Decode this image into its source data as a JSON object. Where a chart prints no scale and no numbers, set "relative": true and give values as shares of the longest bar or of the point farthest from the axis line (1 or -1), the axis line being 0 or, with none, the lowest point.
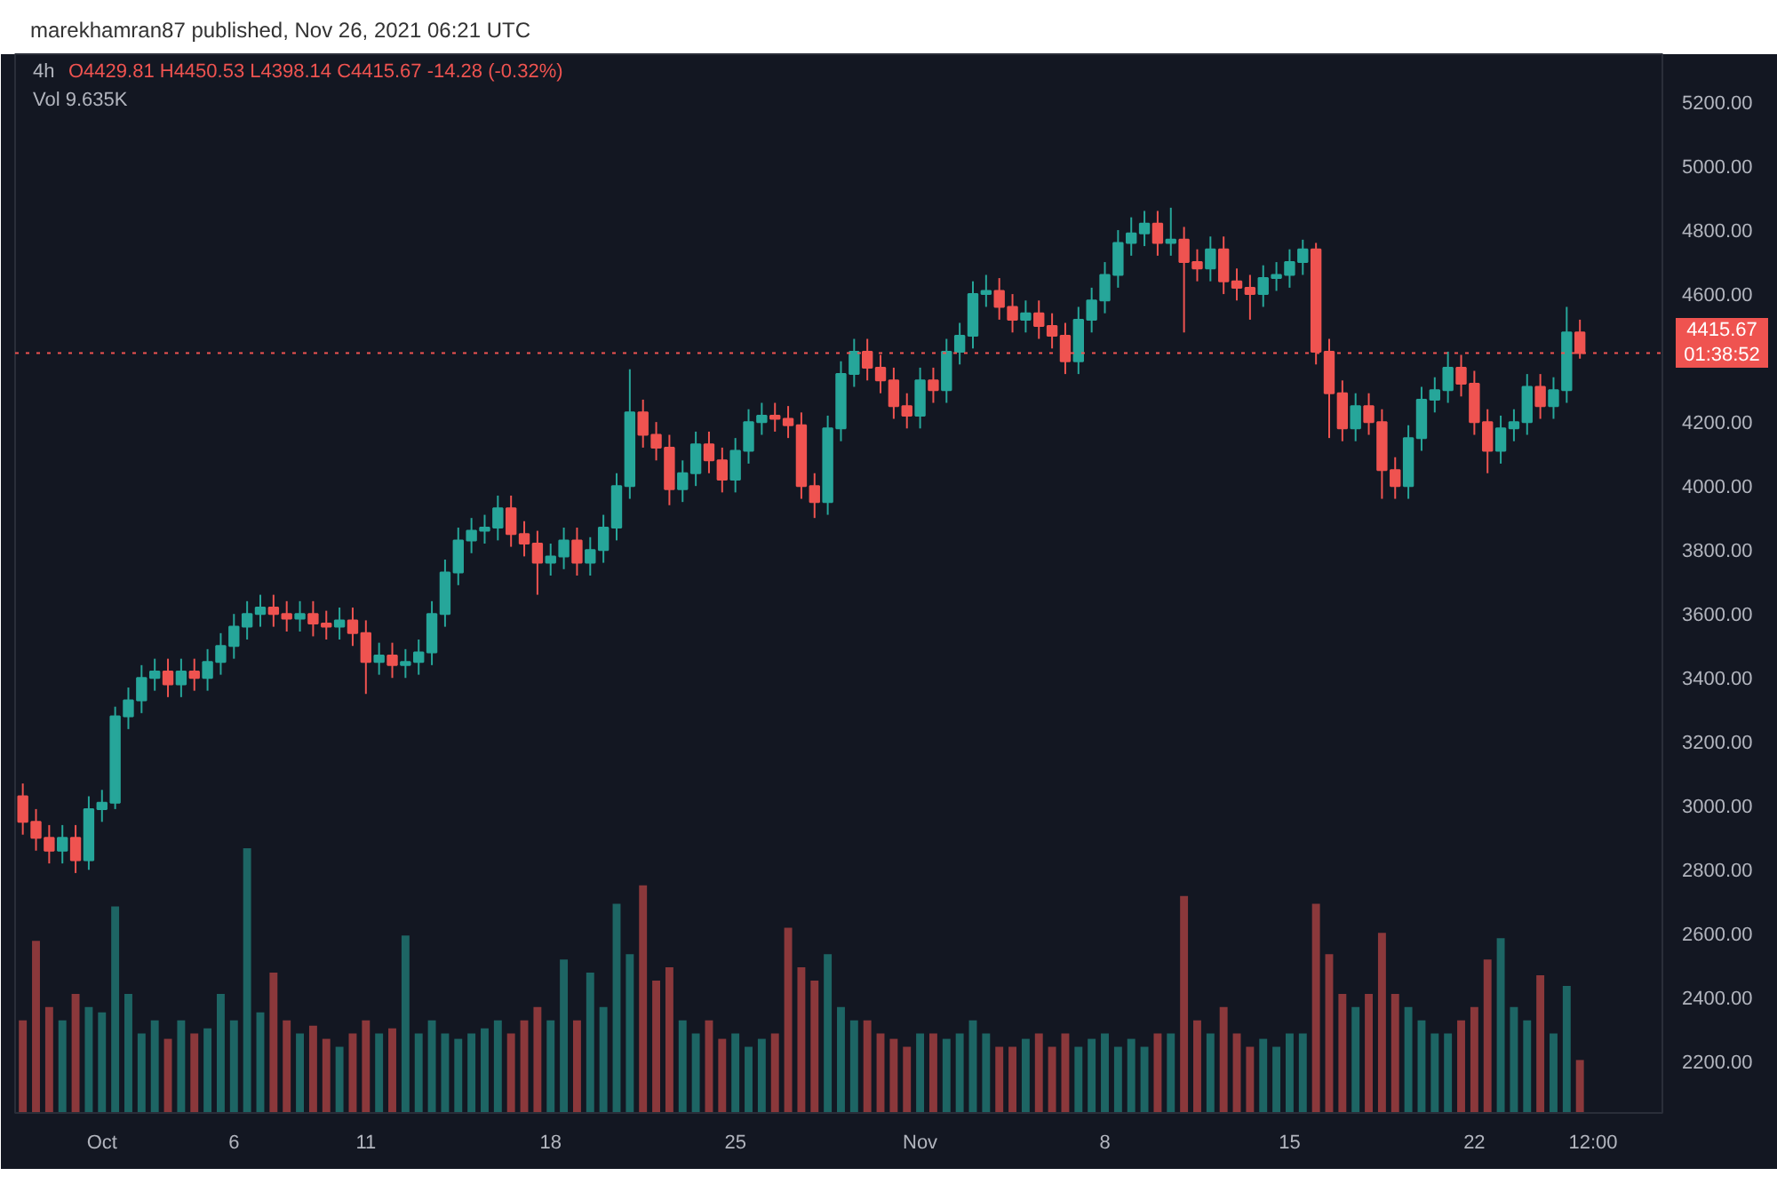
{
  "chart_data": [
    {
      "type": "candlestick",
      "title": "4h",
      "annotations": [
        "marekhamran87 published, Nov 26, 2021 06:21 UTC",
        "O4429.81 H4450.53 L4398.14 C4415.67 -14.28 (-0.32%)",
        "01:38:52"
      ],
      "x": [
        "2021-09-28T00:00",
        "2021-09-28T12:00",
        "2021-09-29T00:00",
        "2021-09-29T12:00",
        "2021-09-30T00:00",
        "2021-09-30T12:00",
        "2021-10-01T00:00",
        "2021-10-01T12:00",
        "2021-10-02T00:00",
        "2021-10-02T12:00",
        "2021-10-03T00:00",
        "2021-10-03T12:00",
        "2021-10-04T00:00",
        "2021-10-04T12:00",
        "2021-10-05T00:00",
        "2021-10-05T12:00",
        "2021-10-06T00:00",
        "2021-10-06T12:00",
        "2021-10-07T00:00",
        "2021-10-07T12:00",
        "2021-10-08T00:00",
        "2021-10-08T12:00",
        "2021-10-09T00:00",
        "2021-10-09T12:00",
        "2021-10-10T00:00",
        "2021-10-10T12:00",
        "2021-10-11T00:00",
        "2021-10-11T12:00",
        "2021-10-12T00:00",
        "2021-10-12T12:00",
        "2021-10-13T00:00",
        "2021-10-13T12:00",
        "2021-10-14T00:00",
        "2021-10-14T12:00",
        "2021-10-15T00:00",
        "2021-10-15T12:00",
        "2021-10-16T00:00",
        "2021-10-16T12:00",
        "2021-10-17T00:00",
        "2021-10-17T12:00",
        "2021-10-18T00:00",
        "2021-10-18T12:00",
        "2021-10-19T00:00",
        "2021-10-19T12:00",
        "2021-10-20T00:00",
        "2021-10-20T12:00",
        "2021-10-21T00:00",
        "2021-10-21T12:00",
        "2021-10-22T00:00",
        "2021-10-22T12:00",
        "2021-10-23T00:00",
        "2021-10-23T12:00",
        "2021-10-24T00:00",
        "2021-10-24T12:00",
        "2021-10-25T00:00",
        "2021-10-25T12:00",
        "2021-10-26T00:00",
        "2021-10-26T12:00",
        "2021-10-27T00:00",
        "2021-10-27T12:00",
        "2021-10-28T00:00",
        "2021-10-28T12:00",
        "2021-10-29T00:00",
        "2021-10-29T12:00",
        "2021-10-30T00:00",
        "2021-10-30T12:00",
        "2021-10-31T00:00",
        "2021-10-31T12:00",
        "2021-11-01T00:00",
        "2021-11-01T12:00",
        "2021-11-02T00:00",
        "2021-11-02T12:00",
        "2021-11-03T00:00",
        "2021-11-03T12:00",
        "2021-11-04T00:00",
        "2021-11-04T12:00",
        "2021-11-05T00:00",
        "2021-11-05T12:00",
        "2021-11-06T00:00",
        "2021-11-06T12:00",
        "2021-11-07T00:00",
        "2021-11-07T12:00",
        "2021-11-08T00:00",
        "2021-11-08T12:00",
        "2021-11-09T00:00",
        "2021-11-09T12:00",
        "2021-11-10T00:00",
        "2021-11-10T12:00",
        "2021-11-11T00:00",
        "2021-11-11T12:00",
        "2021-11-12T00:00",
        "2021-11-12T12:00",
        "2021-11-13T00:00",
        "2021-11-13T12:00",
        "2021-11-14T00:00",
        "2021-11-14T12:00",
        "2021-11-15T00:00",
        "2021-11-15T12:00",
        "2021-11-16T00:00",
        "2021-11-16T12:00",
        "2021-11-17T00:00",
        "2021-11-17T12:00",
        "2021-11-18T00:00",
        "2021-11-18T12:00",
        "2021-11-19T00:00",
        "2021-11-19T12:00",
        "2021-11-20T00:00",
        "2021-11-20T12:00",
        "2021-11-21T00:00",
        "2021-11-21T12:00",
        "2021-11-22T00:00",
        "2021-11-22T12:00",
        "2021-11-23T00:00",
        "2021-11-23T12:00",
        "2021-11-24T00:00",
        "2021-11-24T12:00",
        "2021-11-25T00:00",
        "2021-11-25T12:00",
        "2021-11-26T00:00"
      ],
      "ohlc": [
        [
          3030,
          3070,
          2910,
          2950
        ],
        [
          2950,
          2990,
          2860,
          2900
        ],
        [
          2900,
          2940,
          2820,
          2860
        ],
        [
          2860,
          2940,
          2820,
          2900
        ],
        [
          2900,
          2940,
          2790,
          2830
        ],
        [
          2830,
          3030,
          2800,
          2990
        ],
        [
          2990,
          3050,
          2950,
          3010
        ],
        [
          3010,
          3310,
          2990,
          3280
        ],
        [
          3280,
          3370,
          3240,
          3330
        ],
        [
          3330,
          3440,
          3290,
          3400
        ],
        [
          3400,
          3460,
          3360,
          3420
        ],
        [
          3420,
          3460,
          3340,
          3380
        ],
        [
          3380,
          3460,
          3340,
          3420
        ],
        [
          3420,
          3460,
          3360,
          3400
        ],
        [
          3400,
          3490,
          3360,
          3450
        ],
        [
          3450,
          3540,
          3410,
          3500
        ],
        [
          3500,
          3600,
          3460,
          3560
        ],
        [
          3560,
          3640,
          3520,
          3600
        ],
        [
          3600,
          3660,
          3560,
          3620
        ],
        [
          3620,
          3660,
          3560,
          3600
        ],
        [
          3600,
          3640,
          3545,
          3585
        ],
        [
          3585,
          3640,
          3545,
          3600
        ],
        [
          3600,
          3640,
          3530,
          3570
        ],
        [
          3570,
          3610,
          3520,
          3560
        ],
        [
          3560,
          3620,
          3520,
          3580
        ],
        [
          3580,
          3620,
          3500,
          3540
        ],
        [
          3540,
          3580,
          3350,
          3450
        ],
        [
          3450,
          3510,
          3410,
          3470
        ],
        [
          3470,
          3510,
          3400,
          3440
        ],
        [
          3440,
          3490,
          3400,
          3450
        ],
        [
          3450,
          3520,
          3410,
          3480
        ],
        [
          3480,
          3640,
          3440,
          3600
        ],
        [
          3600,
          3770,
          3560,
          3730
        ],
        [
          3730,
          3870,
          3690,
          3830
        ],
        [
          3830,
          3900,
          3790,
          3860
        ],
        [
          3860,
          3910,
          3820,
          3870
        ],
        [
          3870,
          3970,
          3830,
          3930
        ],
        [
          3930,
          3970,
          3810,
          3850
        ],
        [
          3850,
          3890,
          3780,
          3820
        ],
        [
          3820,
          3860,
          3660,
          3760
        ],
        [
          3760,
          3820,
          3720,
          3780
        ],
        [
          3780,
          3870,
          3740,
          3830
        ],
        [
          3830,
          3870,
          3720,
          3760
        ],
        [
          3760,
          3840,
          3720,
          3800
        ],
        [
          3800,
          3910,
          3760,
          3870
        ],
        [
          3870,
          4040,
          3830,
          4000
        ],
        [
          4000,
          4365,
          3960,
          4230
        ],
        [
          4230,
          4270,
          4120,
          4160
        ],
        [
          4160,
          4200,
          4080,
          4120
        ],
        [
          4120,
          4160,
          3940,
          3990
        ],
        [
          3990,
          4080,
          3950,
          4040
        ],
        [
          4040,
          4170,
          4000,
          4130
        ],
        [
          4130,
          4170,
          4040,
          4080
        ],
        [
          4080,
          4120,
          3980,
          4020
        ],
        [
          4020,
          4150,
          3980,
          4110
        ],
        [
          4110,
          4240,
          4070,
          4200
        ],
        [
          4200,
          4260,
          4160,
          4220
        ],
        [
          4220,
          4260,
          4170,
          4210
        ],
        [
          4210,
          4250,
          4150,
          4190
        ],
        [
          4190,
          4230,
          3960,
          4000
        ],
        [
          4000,
          4040,
          3900,
          3950
        ],
        [
          3950,
          4220,
          3910,
          4180
        ],
        [
          4180,
          4390,
          4140,
          4350
        ],
        [
          4350,
          4460,
          4310,
          4420
        ],
        [
          4420,
          4460,
          4330,
          4370
        ],
        [
          4370,
          4410,
          4290,
          4330
        ],
        [
          4330,
          4370,
          4210,
          4250
        ],
        [
          4250,
          4290,
          4180,
          4220
        ],
        [
          4220,
          4370,
          4180,
          4330
        ],
        [
          4330,
          4370,
          4260,
          4300
        ],
        [
          4300,
          4460,
          4260,
          4420
        ],
        [
          4420,
          4510,
          4380,
          4470
        ],
        [
          4470,
          4640,
          4430,
          4600
        ],
        [
          4600,
          4660,
          4560,
          4610
        ],
        [
          4610,
          4650,
          4520,
          4560
        ],
        [
          4560,
          4600,
          4480,
          4520
        ],
        [
          4520,
          4580,
          4480,
          4540
        ],
        [
          4540,
          4580,
          4460,
          4500
        ],
        [
          4500,
          4540,
          4430,
          4470
        ],
        [
          4470,
          4510,
          4350,
          4390
        ],
        [
          4390,
          4560,
          4350,
          4520
        ],
        [
          4520,
          4620,
          4480,
          4580
        ],
        [
          4580,
          4700,
          4540,
          4660
        ],
        [
          4660,
          4800,
          4620,
          4760
        ],
        [
          4760,
          4840,
          4720,
          4790
        ],
        [
          4790,
          4860,
          4750,
          4820
        ],
        [
          4820,
          4860,
          4720,
          4760
        ],
        [
          4760,
          4870,
          4720,
          4770
        ],
        [
          4770,
          4810,
          4480,
          4700
        ],
        [
          4700,
          4740,
          4640,
          4680
        ],
        [
          4680,
          4780,
          4640,
          4740
        ],
        [
          4740,
          4780,
          4600,
          4640
        ],
        [
          4640,
          4680,
          4580,
          4620
        ],
        [
          4620,
          4660,
          4520,
          4600
        ],
        [
          4600,
          4690,
          4560,
          4650
        ],
        [
          4650,
          4700,
          4610,
          4660
        ],
        [
          4660,
          4740,
          4620,
          4700
        ],
        [
          4700,
          4770,
          4660,
          4740
        ],
        [
          4740,
          4760,
          4380,
          4420
        ],
        [
          4420,
          4460,
          4150,
          4290
        ],
        [
          4290,
          4330,
          4140,
          4180
        ],
        [
          4180,
          4290,
          4140,
          4250
        ],
        [
          4250,
          4290,
          4160,
          4200
        ],
        [
          4200,
          4240,
          3960,
          4050
        ],
        [
          4050,
          4090,
          3960,
          4000
        ],
        [
          4000,
          4190,
          3960,
          4150
        ],
        [
          4150,
          4310,
          4110,
          4270
        ],
        [
          4270,
          4340,
          4230,
          4300
        ],
        [
          4300,
          4420,
          4260,
          4370
        ],
        [
          4370,
          4410,
          4280,
          4320
        ],
        [
          4320,
          4360,
          4160,
          4200
        ],
        [
          4200,
          4240,
          4040,
          4110
        ],
        [
          4110,
          4220,
          4070,
          4180
        ],
        [
          4180,
          4240,
          4140,
          4200
        ],
        [
          4200,
          4350,
          4160,
          4310
        ],
        [
          4310,
          4350,
          4210,
          4250
        ],
        [
          4250,
          4340,
          4210,
          4300
        ],
        [
          4300,
          4560,
          4260,
          4480
        ],
        [
          4480,
          4520,
          4398.14,
          4415.67
        ]
      ],
      "colors": [
        "#ef5350",
        "#ef5350",
        "#ef5350",
        "#26a69a",
        "#ef5350",
        "#26a69a",
        "#26a69a",
        "#26a69a",
        "#26a69a",
        "#26a69a",
        "#26a69a",
        "#ef5350",
        "#26a69a",
        "#ef5350",
        "#26a69a",
        "#26a69a",
        "#26a69a",
        "#26a69a",
        "#26a69a",
        "#ef5350",
        "#ef5350",
        "#26a69a",
        "#ef5350",
        "#ef5350",
        "#26a69a",
        "#ef5350",
        "#ef5350",
        "#26a69a",
        "#ef5350",
        "#26a69a",
        "#26a69a",
        "#26a69a",
        "#26a69a",
        "#26a69a",
        "#26a69a",
        "#26a69a",
        "#26a69a",
        "#ef5350",
        "#ef5350",
        "#ef5350",
        "#26a69a",
        "#26a69a",
        "#ef5350",
        "#26a69a",
        "#26a69a",
        "#26a69a",
        "#26a69a",
        "#ef5350",
        "#ef5350",
        "#ef5350",
        "#26a69a",
        "#26a69a",
        "#ef5350",
        "#ef5350",
        "#26a69a",
        "#26a69a",
        "#26a69a",
        "#ef5350",
        "#ef5350",
        "#ef5350",
        "#ef5350",
        "#26a69a",
        "#26a69a",
        "#26a69a",
        "#ef5350",
        "#ef5350",
        "#ef5350",
        "#ef5350",
        "#26a69a",
        "#ef5350",
        "#26a69a",
        "#26a69a",
        "#26a69a",
        "#26a69a",
        "#ef5350",
        "#ef5350",
        "#26a69a",
        "#ef5350",
        "#ef5350",
        "#ef5350",
        "#26a69a",
        "#26a69a",
        "#26a69a",
        "#26a69a",
        "#26a69a",
        "#26a69a",
        "#ef5350",
        "#26a69a",
        "#ef5350",
        "#ef5350",
        "#26a69a",
        "#ef5350",
        "#ef5350",
        "#ef5350",
        "#26a69a",
        "#26a69a",
        "#26a69a",
        "#26a69a",
        "#ef5350",
        "#ef5350",
        "#ef5350",
        "#26a69a",
        "#ef5350",
        "#ef5350",
        "#ef5350",
        "#26a69a",
        "#26a69a",
        "#26a69a",
        "#26a69a",
        "#ef5350",
        "#ef5350",
        "#ef5350",
        "#26a69a",
        "#26a69a",
        "#26a69a",
        "#ef5350",
        "#26a69a",
        "#26a69a",
        "#ef5350"
      ],
      "xlim": [
        "2021-09-27T17:00",
        "2021-11-29T03:00"
      ],
      "xticks": [
        {
          "value": "2021-10-01",
          "label": "Oct"
        },
        {
          "value": "2021-10-06",
          "label": "6"
        },
        {
          "value": "2021-10-11",
          "label": "11"
        },
        {
          "value": "2021-10-18",
          "label": "18"
        },
        {
          "value": "2021-10-25",
          "label": "25"
        },
        {
          "value": "2021-11-01",
          "label": "Nov"
        },
        {
          "value": "2021-11-08",
          "label": "8"
        },
        {
          "value": "2021-11-15",
          "label": "15"
        },
        {
          "value": "2021-11-22",
          "label": "22"
        },
        {
          "value": "2021-11-26T12:00",
          "label": "12:00"
        }
      ],
      "ylim": [
        2040,
        5350
      ],
      "yticks": [
        {
          "value": 2200,
          "label": "2200.00"
        },
        {
          "value": 2400,
          "label": "2400.00"
        },
        {
          "value": 2600,
          "label": "2600.00"
        },
        {
          "value": 2800,
          "label": "2800.00"
        },
        {
          "value": 3000,
          "label": "3000.00"
        },
        {
          "value": 3200,
          "label": "3200.00"
        },
        {
          "value": 3400,
          "label": "3400.00"
        },
        {
          "value": 3600,
          "label": "3600.00"
        },
        {
          "value": 3800,
          "label": "3800.00"
        },
        {
          "value": 4000,
          "label": "4000.00"
        },
        {
          "value": 4200,
          "label": "4200.00"
        },
        {
          "value": 4600,
          "label": "4600.00"
        },
        {
          "value": 4800,
          "label": "4800.00"
        },
        {
          "value": 5000,
          "label": "5000.00"
        },
        {
          "value": 5200,
          "label": "5200.00"
        }
      ],
      "ref_lines": [
        {
          "axis": "y",
          "value": 4415.67,
          "label": "4415.67",
          "color": "#ef5350",
          "line_style": "dotted"
        }
      ],
      "grid": false
    },
    {
      "type": "bar",
      "relative": true,
      "annotations": [
        "Vol 9.635K"
      ],
      "categories": [
        null,
        null,
        null,
        null,
        null,
        null,
        null,
        null,
        null,
        null,
        null,
        null,
        null,
        null,
        null,
        null,
        null,
        null,
        null,
        null,
        null,
        null,
        null,
        null,
        null,
        null,
        null,
        null,
        null,
        null,
        null,
        null,
        null,
        null,
        null,
        null,
        null,
        null,
        null,
        null,
        null,
        null,
        null,
        null,
        null,
        null,
        null,
        null,
        null,
        null,
        null,
        null,
        null,
        null,
        null,
        null,
        null,
        null,
        null,
        null,
        null,
        null,
        null,
        null,
        null,
        null,
        null,
        null,
        null,
        null,
        null,
        null,
        null,
        null,
        null,
        null,
        null,
        null,
        null,
        null,
        null,
        null,
        null,
        null,
        null,
        null,
        null,
        null,
        null,
        null,
        null,
        null,
        null,
        null,
        null,
        null,
        null,
        null,
        null,
        null,
        null,
        null,
        null,
        null,
        null,
        null,
        null,
        null,
        null,
        null,
        null,
        null,
        null,
        null,
        null,
        null,
        null,
        null,
        null
      ],
      "values": [
        0.35,
        0.65,
        0.4,
        0.35,
        0.45,
        0.4,
        0.38,
        0.78,
        0.45,
        0.3,
        0.35,
        0.28,
        0.35,
        0.3,
        0.32,
        0.45,
        0.35,
        1.0,
        0.38,
        0.53,
        0.35,
        0.3,
        0.33,
        0.28,
        0.25,
        0.3,
        0.35,
        0.3,
        0.32,
        0.67,
        0.3,
        0.35,
        0.3,
        0.28,
        0.3,
        0.32,
        0.35,
        0.3,
        0.35,
        0.4,
        0.35,
        0.58,
        0.35,
        0.53,
        0.4,
        0.79,
        0.6,
        0.86,
        0.5,
        0.55,
        0.35,
        0.3,
        0.35,
        0.28,
        0.3,
        0.25,
        0.28,
        0.3,
        0.7,
        0.55,
        0.5,
        0.6,
        0.4,
        0.35,
        0.35,
        0.3,
        0.28,
        0.25,
        0.3,
        0.3,
        0.28,
        0.3,
        0.35,
        0.3,
        0.25,
        0.25,
        0.28,
        0.3,
        0.25,
        0.3,
        0.25,
        0.28,
        0.3,
        0.25,
        0.28,
        0.25,
        0.3,
        0.3,
        0.82,
        0.35,
        0.3,
        0.4,
        0.3,
        0.25,
        0.28,
        0.25,
        0.3,
        0.3,
        0.79,
        0.6,
        0.45,
        0.4,
        0.45,
        0.68,
        0.45,
        0.4,
        0.35,
        0.3,
        0.3,
        0.35,
        0.4,
        0.58,
        0.66,
        0.4,
        0.35,
        0.52,
        0.3,
        0.48,
        0.2
      ],
      "colors": [
        "#ef5350",
        "#ef5350",
        "#ef5350",
        "#26a69a",
        "#ef5350",
        "#26a69a",
        "#26a69a",
        "#26a69a",
        "#26a69a",
        "#26a69a",
        "#26a69a",
        "#ef5350",
        "#26a69a",
        "#ef5350",
        "#26a69a",
        "#26a69a",
        "#26a69a",
        "#26a69a",
        "#26a69a",
        "#ef5350",
        "#ef5350",
        "#26a69a",
        "#ef5350",
        "#ef5350",
        "#26a69a",
        "#ef5350",
        "#ef5350",
        "#26a69a",
        "#ef5350",
        "#26a69a",
        "#26a69a",
        "#26a69a",
        "#26a69a",
        "#26a69a",
        "#26a69a",
        "#26a69a",
        "#26a69a",
        "#ef5350",
        "#ef5350",
        "#ef5350",
        "#26a69a",
        "#26a69a",
        "#ef5350",
        "#26a69a",
        "#26a69a",
        "#26a69a",
        "#26a69a",
        "#ef5350",
        "#ef5350",
        "#ef5350",
        "#26a69a",
        "#26a69a",
        "#ef5350",
        "#ef5350",
        "#26a69a",
        "#26a69a",
        "#26a69a",
        "#ef5350",
        "#ef5350",
        "#ef5350",
        "#ef5350",
        "#26a69a",
        "#26a69a",
        "#26a69a",
        "#ef5350",
        "#ef5350",
        "#ef5350",
        "#ef5350",
        "#26a69a",
        "#ef5350",
        "#26a69a",
        "#26a69a",
        "#26a69a",
        "#26a69a",
        "#ef5350",
        "#ef5350",
        "#26a69a",
        "#ef5350",
        "#ef5350",
        "#ef5350",
        "#26a69a",
        "#26a69a",
        "#26a69a",
        "#26a69a",
        "#26a69a",
        "#26a69a",
        "#ef5350",
        "#26a69a",
        "#ef5350",
        "#ef5350",
        "#26a69a",
        "#ef5350",
        "#ef5350",
        "#ef5350",
        "#26a69a",
        "#26a69a",
        "#26a69a",
        "#26a69a",
        "#ef5350",
        "#ef5350",
        "#ef5350",
        "#26a69a",
        "#ef5350",
        "#ef5350",
        "#ef5350",
        "#26a69a",
        "#26a69a",
        "#26a69a",
        "#26a69a",
        "#ef5350",
        "#ef5350",
        "#ef5350",
        "#26a69a",
        "#26a69a",
        "#26a69a",
        "#ef5350",
        "#26a69a",
        "#26a69a",
        "#ef5350"
      ]
    }
  ]
}
